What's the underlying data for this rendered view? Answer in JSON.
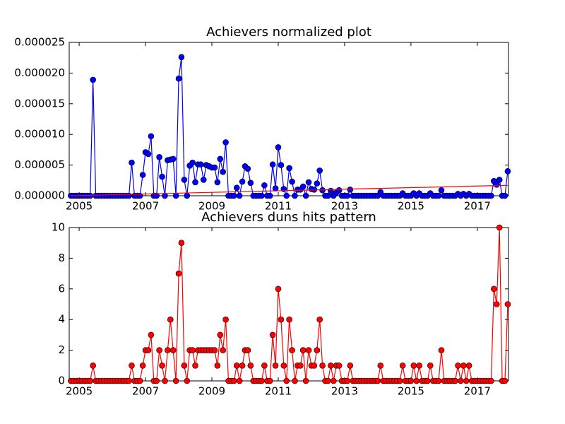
{
  "chart_data": [
    {
      "type": "line",
      "title": "Achievers normalized plot",
      "x": [
        2004.75,
        2004.833,
        2004.917,
        2005,
        2005.083,
        2005.167,
        2005.25,
        2005.333,
        2005.417,
        2005.5,
        2005.583,
        2005.667,
        2005.75,
        2005.833,
        2005.917,
        2006,
        2006.083,
        2006.167,
        2006.25,
        2006.333,
        2006.417,
        2006.5,
        2006.583,
        2006.667,
        2006.75,
        2006.833,
        2006.917,
        2007,
        2007.083,
        2007.167,
        2007.25,
        2007.333,
        2007.417,
        2007.5,
        2007.583,
        2007.667,
        2007.75,
        2007.833,
        2007.917,
        2008,
        2008.083,
        2008.167,
        2008.25,
        2008.333,
        2008.417,
        2008.5,
        2008.583,
        2008.667,
        2008.75,
        2008.833,
        2008.917,
        2009,
        2009.083,
        2009.167,
        2009.25,
        2009.333,
        2009.417,
        2009.5,
        2009.583,
        2009.667,
        2009.75,
        2009.833,
        2009.917,
        2010,
        2010.083,
        2010.167,
        2010.25,
        2010.333,
        2010.417,
        2010.5,
        2010.583,
        2010.667,
        2010.75,
        2010.833,
        2010.917,
        2011,
        2011.083,
        2011.167,
        2011.25,
        2011.333,
        2011.417,
        2011.5,
        2011.583,
        2011.667,
        2011.75,
        2011.833,
        2011.917,
        2012,
        2012.083,
        2012.167,
        2012.25,
        2012.333,
        2012.417,
        2012.5,
        2012.583,
        2012.667,
        2012.75,
        2012.833,
        2012.917,
        2013,
        2013.083,
        2013.167,
        2013.25,
        2013.333,
        2013.417,
        2013.5,
        2013.583,
        2013.667,
        2013.75,
        2013.833,
        2013.917,
        2014,
        2014.083,
        2014.167,
        2014.25,
        2014.333,
        2014.417,
        2014.5,
        2014.583,
        2014.667,
        2014.75,
        2014.833,
        2014.917,
        2015,
        2015.083,
        2015.167,
        2015.25,
        2015.333,
        2015.417,
        2015.5,
        2015.583,
        2015.667,
        2015.75,
        2015.833,
        2015.917,
        2016,
        2016.083,
        2016.167,
        2016.25,
        2016.333,
        2016.417,
        2016.5,
        2016.583,
        2016.667,
        2016.75,
        2016.833,
        2016.917,
        2017,
        2017.083,
        2017.167,
        2017.25,
        2017.333,
        2017.417,
        2017.5,
        2017.583,
        2017.667,
        2017.75,
        2017.833,
        2017.917
      ],
      "series": [
        {
          "color": "#0000ff",
          "marker": true,
          "values": [
            0,
            0,
            0,
            0,
            0,
            0,
            0,
            0,
            1.89e-05,
            0,
            0,
            0,
            0,
            0,
            0,
            0,
            0,
            0,
            0,
            0,
            0,
            0,
            5.4e-06,
            0,
            0,
            0,
            3.4e-06,
            7.1e-06,
            6.8e-06,
            9.7e-06,
            0,
            0,
            6.3e-06,
            3.1e-06,
            0,
            5.8e-06,
            5.9e-06,
            6e-06,
            0,
            1.91e-05,
            2.26e-05,
            2.6e-06,
            0,
            4.9e-06,
            5.4e-06,
            2.2e-06,
            5.1e-06,
            5.1e-06,
            2.6e-06,
            5e-06,
            4.8e-06,
            4.6e-06,
            4.6e-06,
            2.2e-06,
            6e-06,
            3.9e-06,
            8.7e-06,
            0,
            0,
            0,
            1.3e-06,
            0,
            2.3e-06,
            4.8e-06,
            4.4e-06,
            2.1e-06,
            0,
            0,
            0,
            0,
            1.7e-06,
            0,
            0,
            5.1e-06,
            1.2e-06,
            7.9e-06,
            5e-06,
            1.1e-06,
            0,
            4.5e-06,
            2.3e-06,
            0,
            1e-06,
            1e-06,
            1.5e-06,
            0,
            2.2e-06,
            1.1e-06,
            1e-06,
            2e-06,
            4.1e-06,
            9e-07,
            0,
            0,
            8e-07,
            0,
            5e-07,
            9e-07,
            0,
            0,
            0,
            1e-06,
            0,
            0,
            0,
            0,
            0,
            0,
            0,
            0,
            0,
            0,
            6e-07,
            0,
            0,
            0,
            0,
            0,
            0,
            0,
            4e-07,
            0,
            0,
            0,
            4e-07,
            0,
            4e-07,
            0,
            0,
            0,
            4e-07,
            0,
            0,
            0,
            9e-07,
            0,
            0,
            0,
            0,
            0,
            3e-07,
            0,
            3e-07,
            0,
            3e-07,
            0,
            0,
            0,
            0,
            0,
            0,
            0,
            0,
            2.4e-06,
            1.8e-06,
            2.6e-06,
            0,
            0,
            4e-06
          ]
        },
        {
          "color": "#ff0000",
          "marker": false,
          "x": [
            2004.75,
            2017.917
          ],
          "values": [
            0,
            1.7e-06
          ]
        }
      ],
      "xlim": [
        2004.7,
        2017.94
      ],
      "xticks": [
        2005,
        2007,
        2009,
        2011,
        2013,
        2015,
        2017
      ],
      "ylim": [
        0,
        2.5e-05
      ],
      "yticks": [
        {
          "value": 0,
          "label": "0.000000"
        },
        {
          "value": 5e-06,
          "label": "0.000005"
        },
        {
          "value": 1e-05,
          "label": "0.000010"
        },
        {
          "value": 1.5e-05,
          "label": "0.000015"
        },
        {
          "value": 2e-05,
          "label": "0.000020"
        },
        {
          "value": 2.5e-05,
          "label": "0.000025"
        }
      ]
    },
    {
      "type": "line",
      "title": "Achievers duns hits pattern",
      "x": [
        2004.75,
        2004.833,
        2004.917,
        2005,
        2005.083,
        2005.167,
        2005.25,
        2005.333,
        2005.417,
        2005.5,
        2005.583,
        2005.667,
        2005.75,
        2005.833,
        2005.917,
        2006,
        2006.083,
        2006.167,
        2006.25,
        2006.333,
        2006.417,
        2006.5,
        2006.583,
        2006.667,
        2006.75,
        2006.833,
        2006.917,
        2007,
        2007.083,
        2007.167,
        2007.25,
        2007.333,
        2007.417,
        2007.5,
        2007.583,
        2007.667,
        2007.75,
        2007.833,
        2007.917,
        2008,
        2008.083,
        2008.167,
        2008.25,
        2008.333,
        2008.417,
        2008.5,
        2008.583,
        2008.667,
        2008.75,
        2008.833,
        2008.917,
        2009,
        2009.083,
        2009.167,
        2009.25,
        2009.333,
        2009.417,
        2009.5,
        2009.583,
        2009.667,
        2009.75,
        2009.833,
        2009.917,
        2010,
        2010.083,
        2010.167,
        2010.25,
        2010.333,
        2010.417,
        2010.5,
        2010.583,
        2010.667,
        2010.75,
        2010.833,
        2010.917,
        2011,
        2011.083,
        2011.167,
        2011.25,
        2011.333,
        2011.417,
        2011.5,
        2011.583,
        2011.667,
        2011.75,
        2011.833,
        2011.917,
        2012,
        2012.083,
        2012.167,
        2012.25,
        2012.333,
        2012.417,
        2012.5,
        2012.583,
        2012.667,
        2012.75,
        2012.833,
        2012.917,
        2013,
        2013.083,
        2013.167,
        2013.25,
        2013.333,
        2013.417,
        2013.5,
        2013.583,
        2013.667,
        2013.75,
        2013.833,
        2013.917,
        2014,
        2014.083,
        2014.167,
        2014.25,
        2014.333,
        2014.417,
        2014.5,
        2014.583,
        2014.667,
        2014.75,
        2014.833,
        2014.917,
        2015,
        2015.083,
        2015.167,
        2015.25,
        2015.333,
        2015.417,
        2015.5,
        2015.583,
        2015.667,
        2015.75,
        2015.833,
        2015.917,
        2016,
        2016.083,
        2016.167,
        2016.25,
        2016.333,
        2016.417,
        2016.5,
        2016.583,
        2016.667,
        2016.75,
        2016.833,
        2016.917,
        2017,
        2017.083,
        2017.167,
        2017.25,
        2017.333,
        2017.417,
        2017.5,
        2017.583,
        2017.667,
        2017.75,
        2017.833,
        2017.917
      ],
      "series": [
        {
          "color": "#ff0000",
          "marker": true,
          "values": [
            0,
            0,
            0,
            0,
            0,
            0,
            0,
            0,
            1,
            0,
            0,
            0,
            0,
            0,
            0,
            0,
            0,
            0,
            0,
            0,
            0,
            0,
            1,
            0,
            0,
            0,
            1,
            2,
            2,
            3,
            0,
            0,
            2,
            1,
            0,
            2,
            4,
            2,
            0,
            7,
            9,
            1,
            0,
            2,
            2,
            1,
            2,
            2,
            2,
            2,
            2,
            2,
            2,
            1,
            3,
            2,
            4,
            0,
            0,
            0,
            1,
            0,
            1,
            2,
            2,
            1,
            0,
            0,
            0,
            0,
            1,
            0,
            0,
            3,
            1,
            6,
            4,
            1,
            0,
            4,
            2,
            0,
            1,
            1,
            2,
            0,
            2,
            1,
            1,
            2,
            4,
            1,
            0,
            0,
            1,
            0,
            1,
            1,
            0,
            0,
            0,
            1,
            0,
            0,
            0,
            0,
            0,
            0,
            0,
            0,
            0,
            0,
            1,
            0,
            0,
            0,
            0,
            0,
            0,
            0,
            1,
            0,
            0,
            0,
            1,
            0,
            1,
            0,
            0,
            0,
            1,
            0,
            0,
            0,
            2,
            0,
            0,
            0,
            0,
            0,
            1,
            0,
            1,
            0,
            1,
            0,
            0,
            0,
            0,
            0,
            0,
            0,
            0,
            6,
            5,
            10,
            0,
            0,
            5
          ]
        }
      ],
      "xlim": [
        2004.7,
        2017.94
      ],
      "xticks": [
        2005,
        2007,
        2009,
        2011,
        2013,
        2015,
        2017
      ],
      "ylim": [
        0,
        10
      ],
      "yticks": [
        0,
        2,
        4,
        6,
        8,
        10
      ]
    }
  ]
}
